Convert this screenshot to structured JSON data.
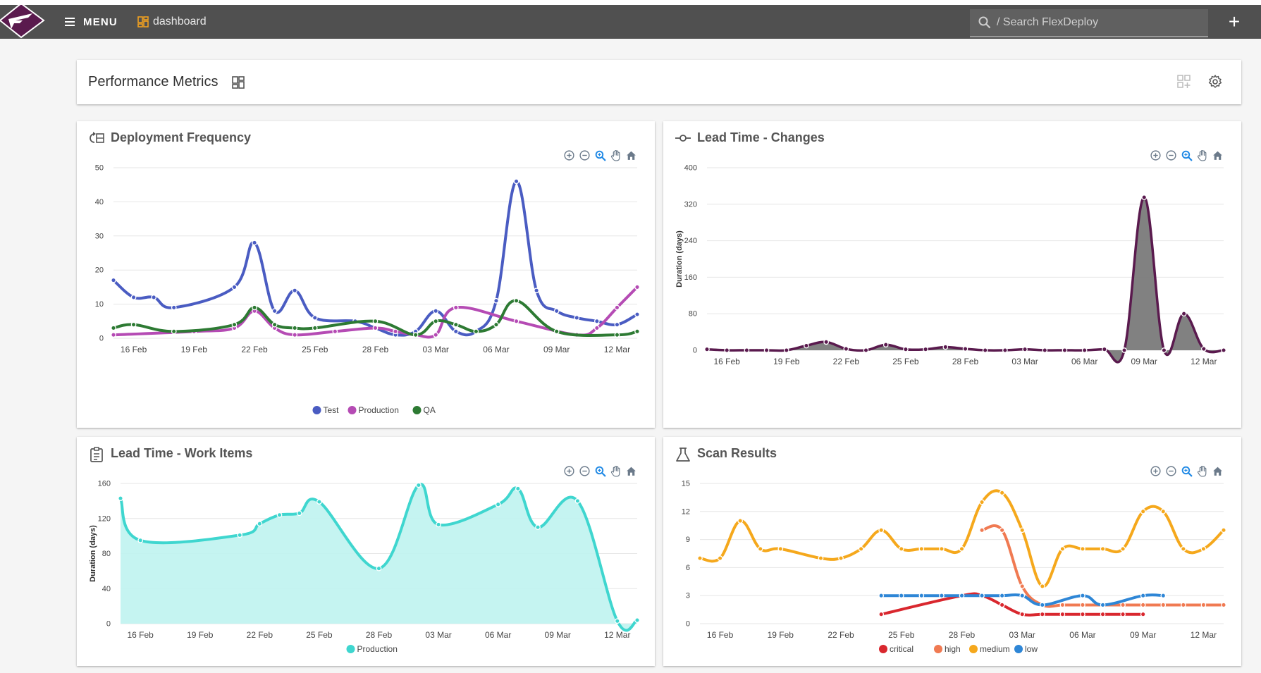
{
  "app": {
    "menu_label": "MENU",
    "breadcrumb": "dashboard",
    "search_placeholder": "/ Search FlexDeploy",
    "add_label": "+"
  },
  "header": {
    "title": "Performance Metrics"
  },
  "colors": {
    "topbar": "#505050",
    "logo": "#5a1a4e",
    "dashboard_icon": "#f0a020"
  },
  "toolbar_icons": [
    "zoom-in-icon",
    "zoom-out-icon",
    "selection-zoom-icon",
    "pan-icon",
    "reset-home-icon"
  ],
  "chart_data": [
    {
      "id": "deploy",
      "title": "Deployment Frequency",
      "type": "line",
      "x": [
        "15 Feb",
        "16 Feb",
        "17 Feb",
        "18 Feb",
        "19 Feb",
        "20 Feb",
        "21 Feb",
        "22 Feb",
        "23 Feb",
        "24 Feb",
        "25 Feb",
        "26 Feb",
        "27 Feb",
        "28 Feb",
        "01 Mar",
        "02 Mar",
        "03 Mar",
        "04 Mar",
        "05 Mar",
        "06 Mar",
        "07 Mar",
        "08 Mar",
        "09 Mar",
        "10 Mar",
        "11 Mar",
        "12 Mar",
        "13 Mar"
      ],
      "x_ticks": [
        "16 Feb",
        "19 Feb",
        "22 Feb",
        "25 Feb",
        "28 Feb",
        "03 Mar",
        "06 Mar",
        "09 Mar",
        "12 Mar"
      ],
      "ylim": [
        0,
        50
      ],
      "y_ticks": [
        0,
        10,
        20,
        30,
        40,
        50
      ],
      "ylabel": "",
      "series": [
        {
          "name": "Test",
          "color": "#4a5cc2",
          "values": [
            17,
            12,
            12,
            9,
            null,
            null,
            15,
            28,
            8,
            14,
            6,
            null,
            5,
            3,
            1,
            2,
            8,
            2,
            2,
            11,
            46,
            14,
            8,
            6,
            5,
            4,
            7
          ]
        },
        {
          "name": "Production",
          "color": "#b54bb4",
          "values": [
            1,
            null,
            null,
            null,
            2,
            null,
            3,
            8,
            3,
            1,
            null,
            2,
            null,
            3,
            2,
            1,
            1,
            9,
            null,
            null,
            5,
            null,
            null,
            1,
            3,
            9,
            15
          ]
        },
        {
          "name": "QA",
          "color": "#2d7a33",
          "values": [
            3,
            4,
            null,
            2,
            null,
            null,
            4,
            9,
            4,
            3,
            3,
            null,
            null,
            5,
            null,
            1,
            5,
            4,
            2,
            4,
            11,
            null,
            2,
            null,
            null,
            1,
            2
          ]
        }
      ],
      "legend": "bottom"
    },
    {
      "id": "leadchanges",
      "title": "Lead Time - Changes",
      "type": "area",
      "x": [
        "15 Feb",
        "16 Feb",
        "17 Feb",
        "18 Feb",
        "19 Feb",
        "20 Feb",
        "21 Feb",
        "22 Feb",
        "23 Feb",
        "24 Feb",
        "25 Feb",
        "26 Feb",
        "27 Feb",
        "28 Feb",
        "01 Mar",
        "02 Mar",
        "03 Mar",
        "04 Mar",
        "05 Mar",
        "06 Mar",
        "07 Mar",
        "08 Mar",
        "09 Mar",
        "10 Mar",
        "11 Mar",
        "12 Mar",
        "13 Mar"
      ],
      "x_ticks": [
        "16 Feb",
        "19 Feb",
        "22 Feb",
        "25 Feb",
        "28 Feb",
        "03 Mar",
        "06 Mar",
        "09 Mar",
        "12 Mar"
      ],
      "ylim": [
        0,
        400
      ],
      "y_ticks": [
        0,
        80,
        160,
        240,
        320,
        400
      ],
      "ylabel": "Duration (days)",
      "series": [
        {
          "name": "",
          "color": "#5a1a4e",
          "fill": "#7a7a7a",
          "values": [
            2,
            0,
            0,
            0,
            0,
            10,
            18,
            3,
            0,
            12,
            2,
            2,
            7,
            3,
            0,
            0,
            2,
            0,
            0,
            0,
            2,
            0,
            335,
            0,
            80,
            3,
            0
          ]
        }
      ],
      "legend": "none"
    },
    {
      "id": "leadwork",
      "title": "Lead Time - Work Items",
      "type": "area",
      "x": [
        "15 Feb",
        "16 Feb",
        "21 Feb",
        "22 Feb",
        "23 Feb",
        "24 Feb",
        "25 Feb",
        "28 Feb",
        "02 Mar",
        "03 Mar",
        "06 Mar",
        "07 Mar",
        "08 Mar",
        "10 Mar",
        "12 Mar",
        "13 Mar"
      ],
      "x_ticks": [
        "16 Feb",
        "19 Feb",
        "22 Feb",
        "25 Feb",
        "28 Feb",
        "03 Mar",
        "06 Mar",
        "09 Mar",
        "12 Mar"
      ],
      "x_tick_dates": [
        "16 Feb",
        "19 Feb",
        "22 Feb",
        "25 Feb",
        "28 Feb",
        "03 Mar",
        "06 Mar",
        "09 Mar",
        "12 Mar"
      ],
      "ylim": [
        0,
        160
      ],
      "y_ticks": [
        0,
        40,
        80,
        120,
        160
      ],
      "ylabel": "Duration (days)",
      "series": [
        {
          "name": "Production",
          "color": "#3fd6cf",
          "fill": "#bff3f0",
          "values": [
            143,
            95,
            101,
            114,
            124,
            126,
            139,
            63,
            158,
            113,
            136,
            154,
            110,
            140,
            3,
            4
          ]
        }
      ],
      "legend": "bottom"
    },
    {
      "id": "scan",
      "title": "Scan Results",
      "type": "line",
      "x": [
        "15 Feb",
        "16 Feb",
        "17 Feb",
        "18 Feb",
        "19 Feb",
        "20 Feb",
        "21 Feb",
        "22 Feb",
        "23 Feb",
        "24 Feb",
        "25 Feb",
        "26 Feb",
        "27 Feb",
        "28 Feb",
        "01 Mar",
        "02 Mar",
        "03 Mar",
        "04 Mar",
        "05 Mar",
        "06 Mar",
        "07 Mar",
        "08 Mar",
        "09 Mar",
        "10 Mar",
        "11 Mar",
        "12 Mar",
        "13 Mar"
      ],
      "x_ticks": [
        "16 Feb",
        "19 Feb",
        "22 Feb",
        "25 Feb",
        "28 Feb",
        "03 Mar",
        "06 Mar",
        "09 Mar",
        "12 Mar"
      ],
      "ylim": [
        0,
        15
      ],
      "y_ticks": [
        0,
        3,
        6,
        9,
        12,
        15
      ],
      "ylabel": "",
      "series": [
        {
          "name": "critical",
          "color": "#d9272e",
          "values": [
            null,
            null,
            null,
            null,
            null,
            null,
            null,
            null,
            null,
            1,
            null,
            null,
            null,
            3,
            3,
            2,
            1,
            1,
            1,
            1,
            1,
            1,
            1,
            null,
            null,
            null,
            null
          ]
        },
        {
          "name": "high",
          "color": "#f07a52",
          "values": [
            null,
            null,
            null,
            null,
            null,
            null,
            null,
            null,
            null,
            null,
            null,
            null,
            null,
            null,
            10,
            10,
            4,
            2,
            2,
            2,
            2,
            2,
            2,
            2,
            2,
            2,
            2
          ]
        },
        {
          "name": "medium",
          "color": "#f5a81c",
          "values": [
            7,
            7,
            11,
            8,
            8,
            null,
            7,
            7,
            8,
            10,
            8,
            8,
            8,
            8,
            13,
            14,
            10,
            4,
            8,
            8,
            8,
            8,
            12,
            12,
            8,
            8,
            10
          ]
        },
        {
          "name": "low",
          "color": "#2e86d6",
          "values": [
            null,
            null,
            null,
            null,
            null,
            null,
            null,
            null,
            null,
            3,
            3,
            3,
            3,
            3,
            3,
            3,
            3,
            2,
            null,
            3,
            2,
            null,
            3,
            3,
            null,
            null,
            null
          ]
        }
      ],
      "legend": "bottom"
    }
  ]
}
